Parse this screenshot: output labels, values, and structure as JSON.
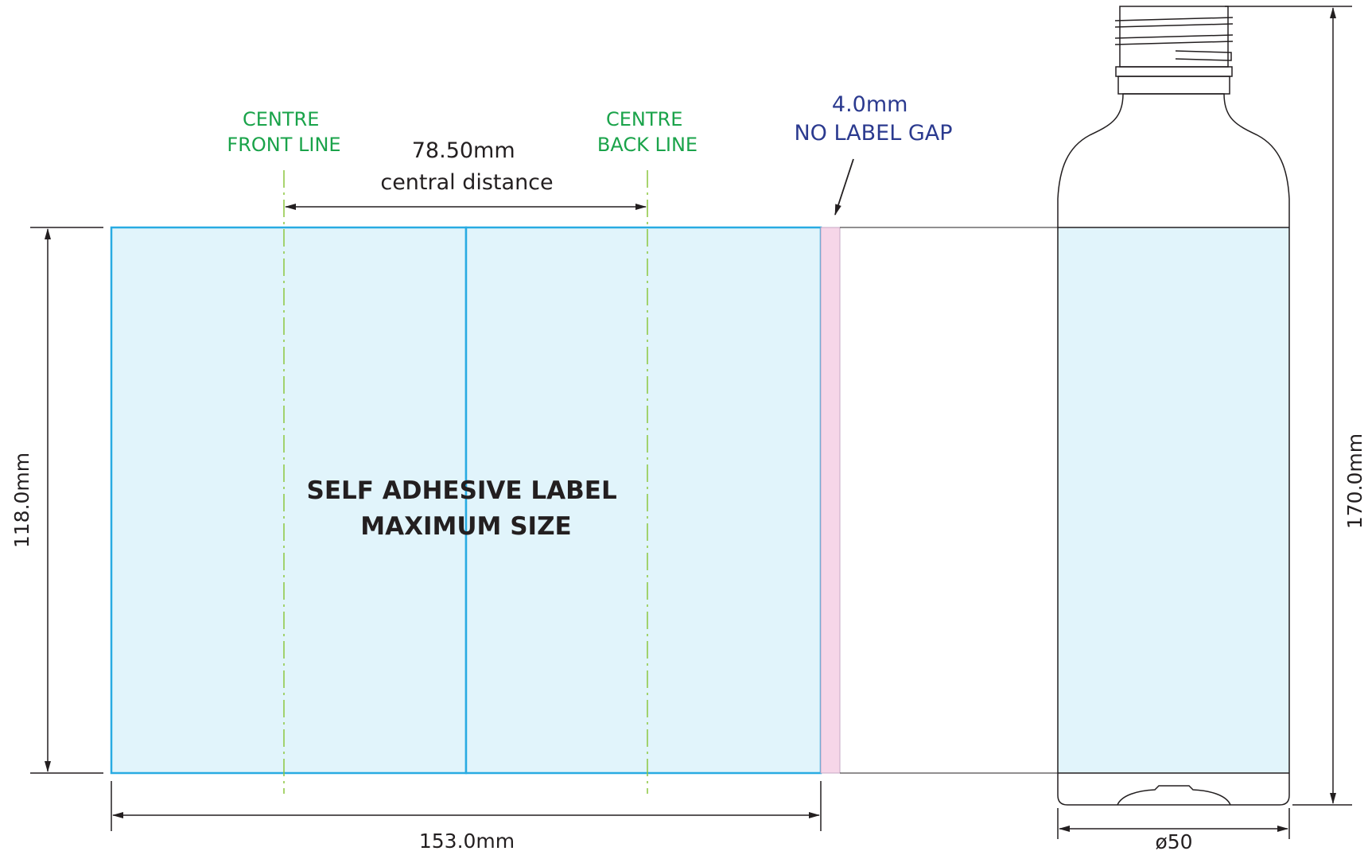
{
  "annotations": {
    "centre_front_line": [
      "CENTRE",
      "FRONT LINE"
    ],
    "centre_back_line": [
      "CENTRE",
      "BACK LINE"
    ],
    "central_distance": [
      "78.50mm",
      "central distance"
    ],
    "no_label_gap": [
      "4.0mm",
      "NO LABEL GAP"
    ]
  },
  "label_text": [
    "SELF ADHESIVE LABEL",
    "MAXIMUM SIZE"
  ],
  "dimensions": {
    "label_height": "118.0mm",
    "label_width": "153.0mm",
    "bottle_height": "170.0mm",
    "bottle_diameter": "ø50"
  },
  "colors": {
    "label_fill": "#e1f4fb",
    "label_stroke": "#29abe2",
    "gap_fill": "#f6d6e8",
    "centre_line": "#8cc63f",
    "outline": "#231f20"
  }
}
